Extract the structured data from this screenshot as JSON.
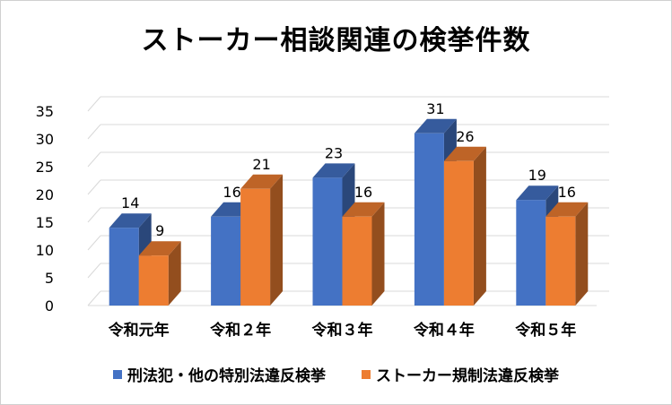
{
  "chart_data": {
    "type": "bar",
    "title": "ストーカー相談関連の検挙件数",
    "categories": [
      "令和元年",
      "令和２年",
      "令和３年",
      "令和４年",
      "令和５年"
    ],
    "series": [
      {
        "name": "刑法犯・他の特別法違反検挙",
        "values": [
          14,
          16,
          23,
          31,
          19
        ],
        "color": "#4472c4"
      },
      {
        "name": "ストーカー規制法違反検挙",
        "values": [
          9,
          21,
          16,
          26,
          16
        ],
        "color": "#ed7d31"
      }
    ],
    "yticks": [
      "0",
      "5",
      "10",
      "15",
      "20",
      "25",
      "30",
      "35"
    ],
    "ylim": [
      0,
      35
    ],
    "xlabel": "",
    "ylabel": "",
    "grid": true,
    "legend_position": "bottom",
    "style": "3d-clustered-column"
  }
}
